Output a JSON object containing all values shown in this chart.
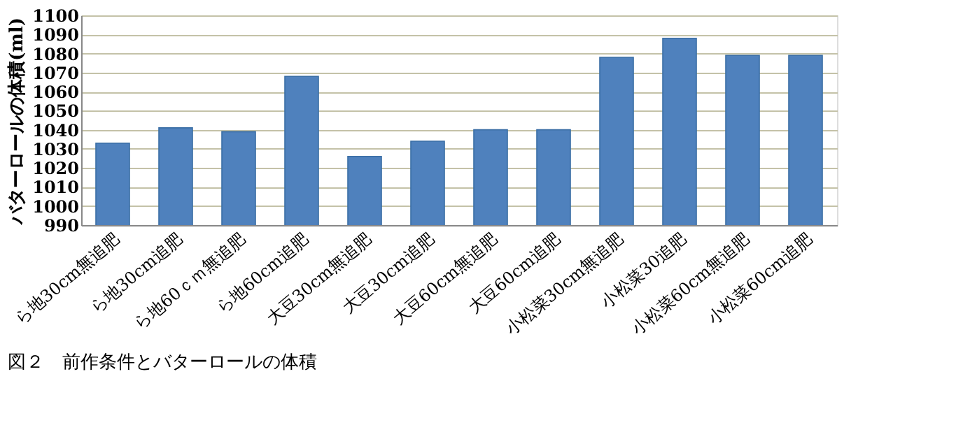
{
  "chart_data": {
    "type": "bar",
    "title": "図２　前作条件とバターロールの体積",
    "ylabel": "バターロールの体積(ml)",
    "categories": [
      "ら地30cm無追肥",
      "ら地30cm追肥",
      "ら地60ｃｍ無追肥",
      "ら地60cm追肥",
      "大豆30cm無追肥",
      "大豆30cm追肥",
      "大豆60cm無追肥",
      "大豆60cm追肥",
      "小松菜30cm無追肥",
      "小松菜30追肥",
      "小松菜60cm無追肥",
      "小松菜60cm追肥"
    ],
    "values": [
      1033,
      1041,
      1039,
      1068,
      1026,
      1034,
      1040,
      1040,
      1078,
      1088,
      1079,
      1079
    ],
    "color": "#4f81bd",
    "ylim": [
      990,
      1100
    ],
    "yticks": [
      990,
      1000,
      1010,
      1020,
      1030,
      1040,
      1050,
      1060,
      1070,
      1080,
      1090,
      1100
    ],
    "grid": "y"
  }
}
